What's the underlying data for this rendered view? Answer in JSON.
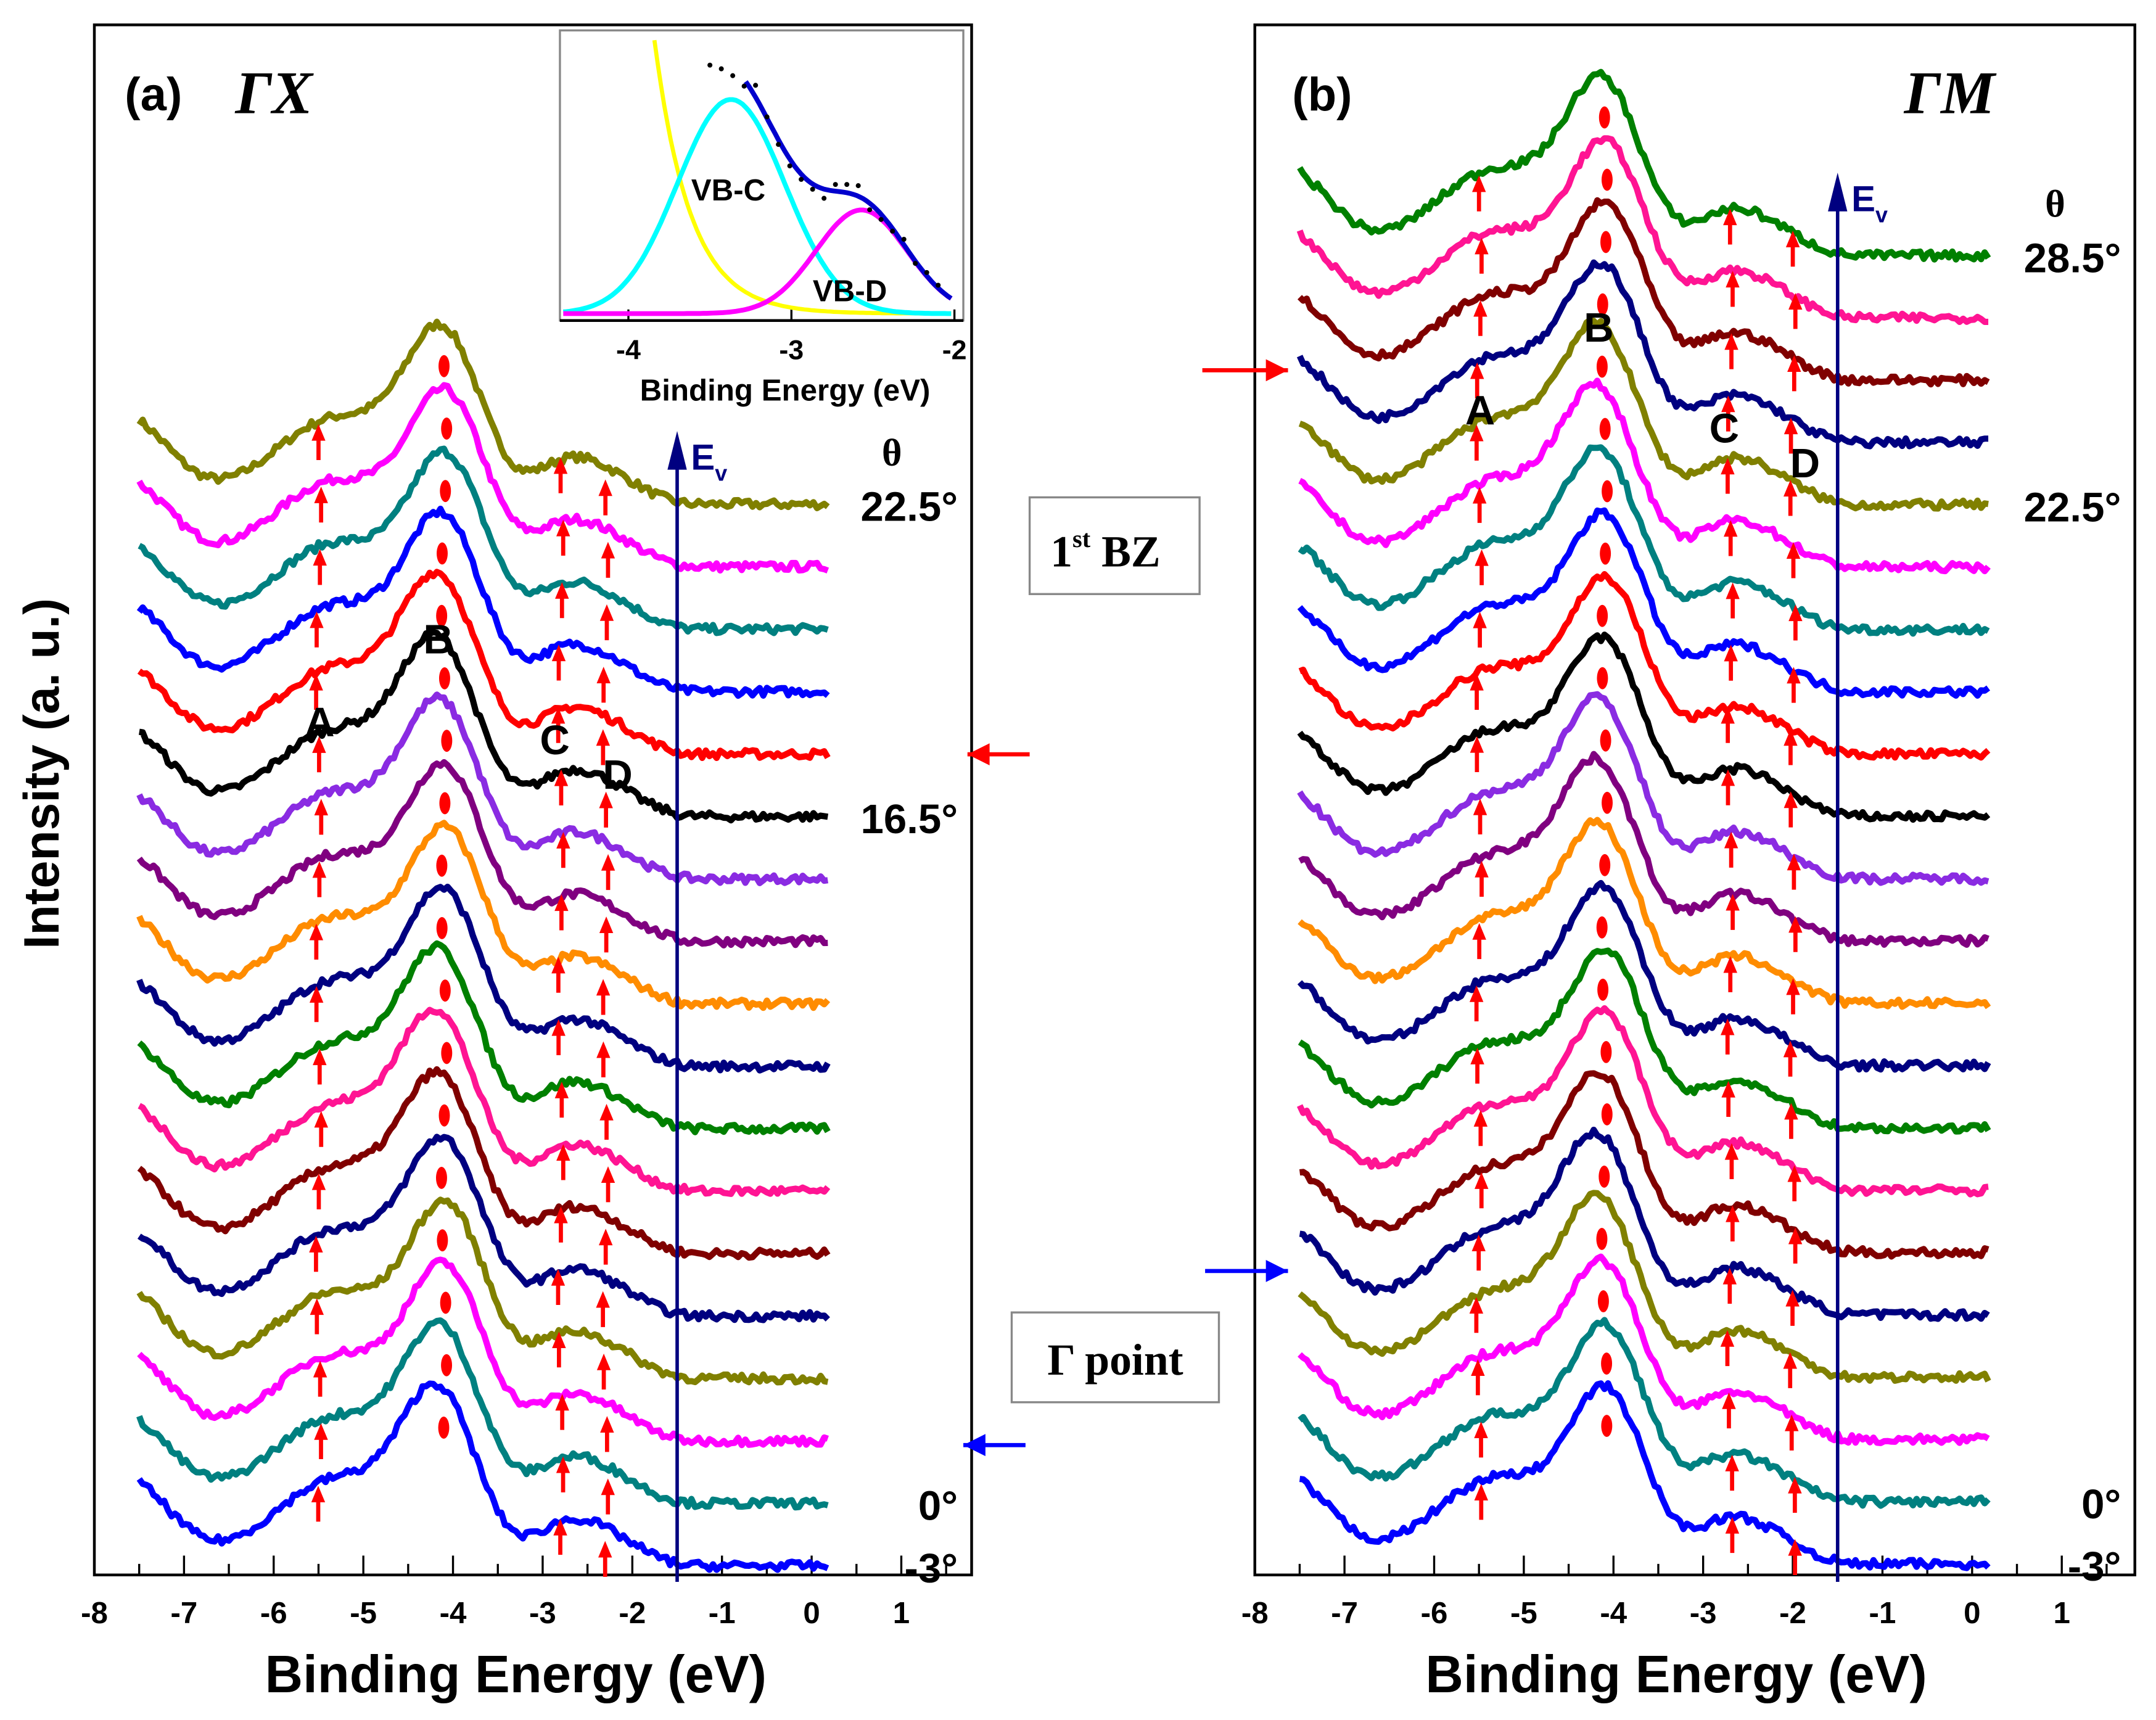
{
  "chart_data": [
    {
      "type": "line",
      "panel": "(a)",
      "direction": "ΓX",
      "xlabel": "Binding Energy (eV)",
      "ylabel": "Intensity (a. u.)",
      "xlim": [
        -8,
        1.6
      ],
      "xticks": [
        "-8",
        "-7",
        "-6",
        "-5",
        "-4",
        "-3",
        "-2",
        "-1",
        "0",
        "1"
      ],
      "series_colors": [
        "#808000",
        "#ff00ff",
        "#008080",
        "#0000ff",
        "#ff0000",
        "#000000",
        "#8a2be2",
        "#800080",
        "#ff8c00",
        "#000080",
        "#008000",
        "#ff1493",
        "#800000",
        "#000080",
        "#808000",
        "#ff00ff",
        "#008080",
        "#0000ff"
      ],
      "angle_labels": [
        {
          "index": 0,
          "text": "22.5°"
        },
        {
          "index": 5,
          "text": "16.5°"
        },
        {
          "index": 16,
          "text": "0°"
        },
        {
          "index": 17,
          "text": "-3°"
        }
      ],
      "theta_label": "θ",
      "ev_label": "E",
      "ev_sub": "v",
      "ev_energy": -1.5,
      "peak_labels": [
        "A",
        "B",
        "C",
        "D"
      ],
      "peak_energies": [
        -5.5,
        -4.1,
        -2.8,
        -2.3
      ],
      "labeled_index": 5
    },
    {
      "type": "line",
      "panel": "(b)",
      "direction": "ΓM",
      "xlabel": "Binding Energy (eV)",
      "xlim": [
        -8,
        1.6
      ],
      "xticks": [
        "-8",
        "-7",
        "-6",
        "-5",
        "-4",
        "-3",
        "-2",
        "-1",
        "0",
        "1"
      ],
      "series_colors": [
        "#008000",
        "#ff1493",
        "#800000",
        "#000080",
        "#808000",
        "#ff00ff",
        "#008080",
        "#0000ff",
        "#ff0000",
        "#000000",
        "#8a2be2",
        "#800080",
        "#ff8c00",
        "#000080",
        "#008000",
        "#ff1493",
        "#800000",
        "#000080",
        "#808000",
        "#ff00ff",
        "#008080",
        "#0000ff"
      ],
      "angle_labels": [
        {
          "index": 0,
          "text": "28.5°"
        },
        {
          "index": 4,
          "text": "22.5°"
        },
        {
          "index": 20,
          "text": "0°"
        },
        {
          "index": 21,
          "text": "-3°"
        }
      ],
      "theta_label": "θ",
      "ev_label": "E",
      "ev_sub": "v",
      "ev_energy": -1.5,
      "peak_labels": [
        "A",
        "B",
        "C",
        "D"
      ],
      "peak_energies": [
        -5.5,
        -4.1,
        -2.7,
        -2.0
      ],
      "labeled_index": 4
    },
    {
      "type": "line",
      "panel": "inset",
      "xlabel": "Binding Energy (eV)",
      "xticks": [
        "-4",
        "-3",
        "-2"
      ],
      "xlim": [
        -4.42,
        -1.97
      ],
      "components": [
        {
          "name": "VB-C",
          "color": "#00ffff",
          "center": -3.37,
          "width": 0.33
        },
        {
          "name": "VB-D",
          "color": "#ff00ff",
          "center": -2.57,
          "width": 0.28
        }
      ],
      "fit_color": "#0000cd",
      "background_color": "#ffff00"
    }
  ],
  "annotations": {
    "bz": "1",
    "bz_sup": "st",
    "bz_rest": " BZ",
    "gamma_point": "Γ point"
  }
}
